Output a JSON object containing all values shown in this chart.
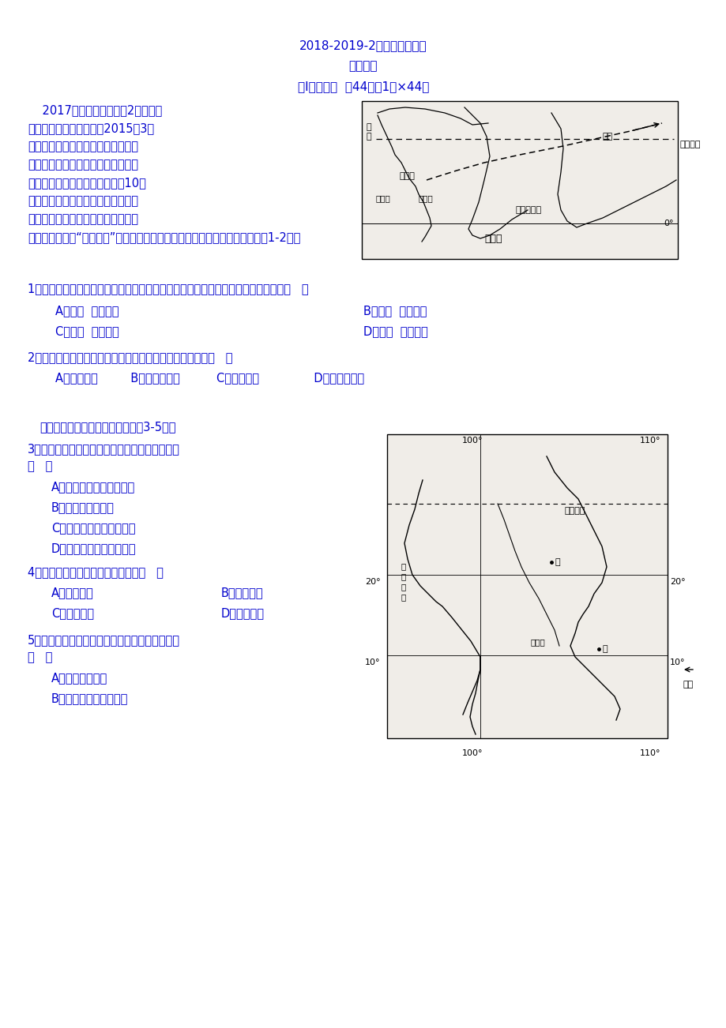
{
  "bg_color": "#ffffff",
  "text_color": "#0000cd",
  "title1": "2018-2019-2第一次月考考试",
  "title2": "高二地理",
  "title3": "第Ⅰ卷选择题  （44分，1分×44）",
  "q1": "1．我国护航编队前往亚丁湾海域执行护航任务的最佳季节及自然原因对应正确的是（   ）",
  "q1a": "A．夏季  顺风顺水",
  "q1b": "B．冬季  顺风顺水",
  "q1c": "C．夏季  逆风逆水",
  "q1d": "D．冬季  逆风逆水",
  "q2": "2．索马里海域夏季渔业资源丰富，与其成因相似的渔场是（   ）",
  "q2opts": "A．秘鲁渔场         B．北海道渔场          C．舟山渔场               D．纽芬兰渔场",
  "intro2": "右图为世界某区域略图，读图完成3-5题。",
  "q3line1": "3．图示区域西部沿海地区降水丰富，主要是由于",
  "q3line2": "（   ）",
  "q3a": "A．盛行西风受到地形抬升",
  "q3b": "B．受沿岸寒流影响",
  "q3c": "C．西南季风受到地形抬升",
  "q3d": "D．东南信风带来丰沛水汽",
  "q4": "4．甲地地貌形成的外力作用主要是（   ）",
  "q4a": "A．风力堆积",
  "q4b": "B．风力侵蚀",
  "q4c": "C．流水侵蚀",
  "q4d": "D．流水堆积",
  "q5line1": "5．下列选项中，符合乙地农业地域类型特点的是",
  "q5line2": "（   ）",
  "q5a": "A．机械化水平高",
  "q5b": "B．粗放经营，商品率低",
  "font_size_title": 11,
  "font_size_body": 10.5,
  "para_lines": [
    "    2017年热播电影《战牗2》中我国",
    "海军进行的救援行动是以2015年3月",
    "的也门撤侨行动为原型。为保护我国",
    "公民生命财产安全，我国政府派遣海",
    "军第十九批护航编队成功将来自10个",
    "国家的公民从也门的亚丁港转移至吉",
    "布提共和国吉布提港，执行任务的临",
    "沂舰也被比作是“诺亚方舟”。右图为我国海军护航编队航线示意图。据此完戝1-2题。"
  ]
}
